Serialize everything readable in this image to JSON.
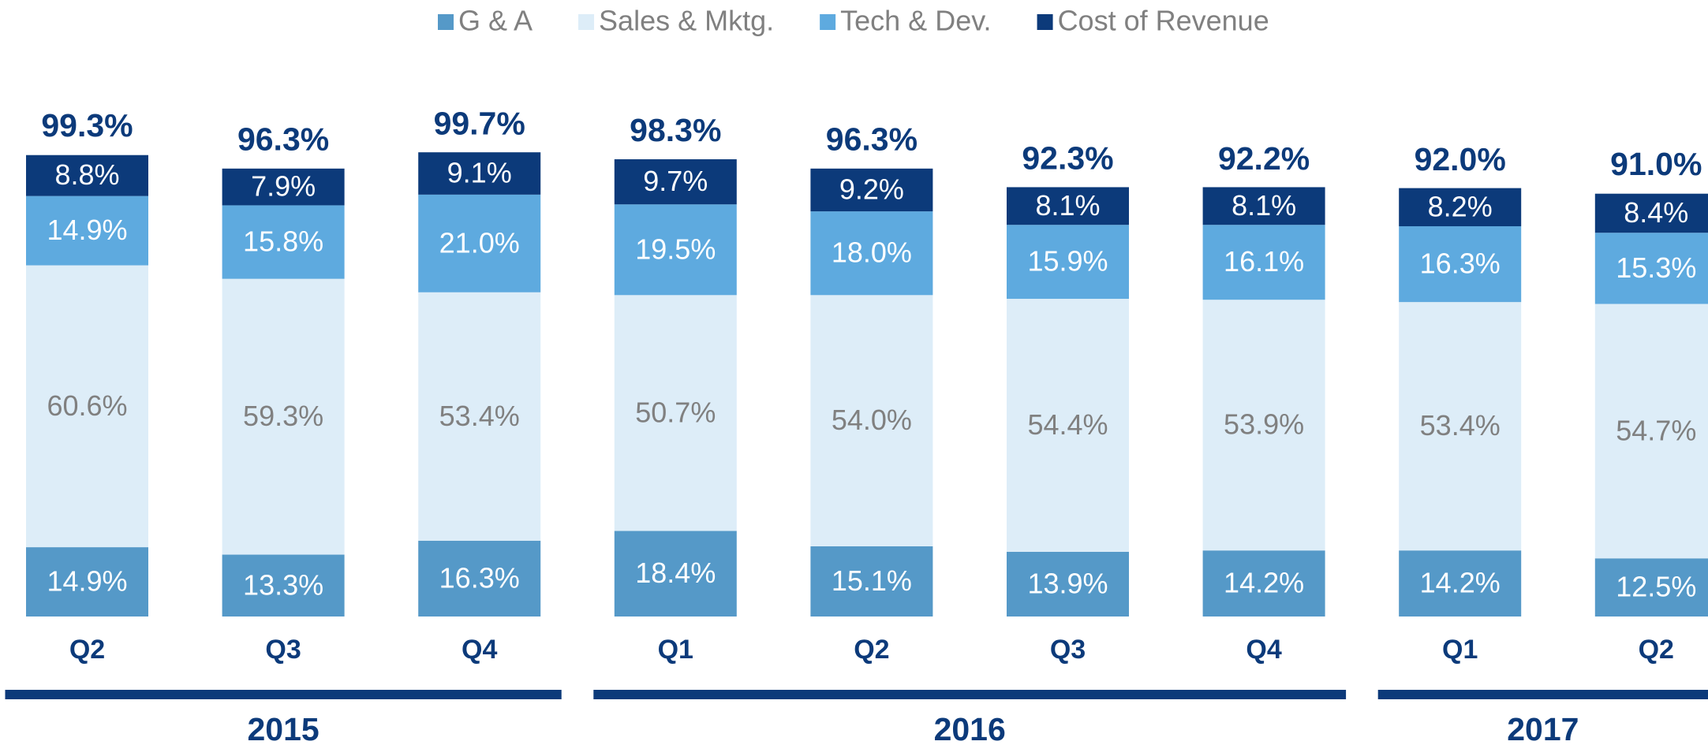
{
  "chart_data": {
    "type": "stacked_bar",
    "groups": [
      {
        "name": "2015",
        "categories": [
          "Q2",
          "Q3",
          "Q4"
        ]
      },
      {
        "name": "2016",
        "categories": [
          "Q1",
          "Q2",
          "Q3",
          "Q4"
        ]
      },
      {
        "name": "2017",
        "categories": [
          "Q1",
          "Q2"
        ]
      }
    ],
    "series": [
      {
        "name": "G & A",
        "color": "#5599c8",
        "label_color": "#ffffff",
        "values": [
          14.9,
          13.3,
          16.3,
          18.4,
          15.1,
          13.9,
          14.2,
          14.2,
          12.5
        ],
        "value_labels": [
          "14.9%",
          "13.3%",
          "16.3%",
          "18.4%",
          "15.1%",
          "13.9%",
          "14.2%",
          "14.2%",
          "12.5%"
        ]
      },
      {
        "name": "Sales & Mktg.",
        "color": "#ddedf8",
        "label_color": "#808080",
        "values": [
          60.6,
          59.3,
          53.4,
          50.7,
          54.0,
          54.4,
          53.9,
          53.4,
          54.7
        ],
        "value_labels": [
          "60.6%",
          "59.3%",
          "53.4%",
          "50.7%",
          "54.0%",
          "54.4%",
          "53.9%",
          "53.4%",
          "54.7%"
        ]
      },
      {
        "name": "Tech & Dev.",
        "color": "#5eaadf",
        "label_color": "#ffffff",
        "values": [
          14.9,
          15.8,
          21.0,
          19.5,
          18.0,
          15.9,
          16.1,
          16.3,
          15.3
        ],
        "value_labels": [
          "14.9%",
          "15.8%",
          "21.0%",
          "19.5%",
          "18.0%",
          "15.9%",
          "16.1%",
          "16.3%",
          "15.3%"
        ]
      },
      {
        "name": "Cost of Revenue",
        "color": "#0c3a7a",
        "label_color": "#ffffff",
        "values": [
          8.8,
          7.9,
          9.1,
          9.7,
          9.2,
          8.1,
          8.1,
          8.2,
          8.4
        ],
        "value_labels": [
          "8.8%",
          "7.9%",
          "9.1%",
          "9.7%",
          "9.2%",
          "8.1%",
          "8.1%",
          "8.2%",
          "8.4%"
        ]
      }
    ],
    "totals": [
      99.3,
      96.3,
      99.7,
      98.3,
      96.3,
      92.3,
      92.2,
      92.0,
      91.0
    ],
    "total_labels": [
      "99.3%",
      "96.3%",
      "99.7%",
      "98.3%",
      "96.3%",
      "92.3%",
      "92.2%",
      "92.0%",
      "91.0%"
    ],
    "accent_color": "#0c3a7a",
    "legend": "top"
  }
}
